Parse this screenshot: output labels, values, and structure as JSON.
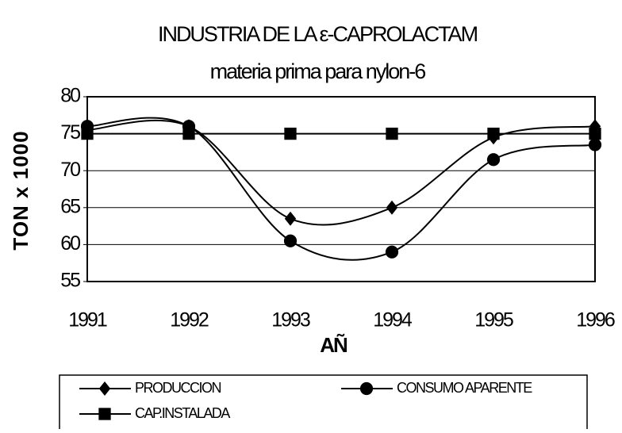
{
  "chart_data": {
    "type": "line",
    "title": "INDUSTRIA DE LA ε-CAPROLACTAM",
    "subtitle": "materia prima para nylon-6",
    "x_label": "AÑ",
    "y_label": "TON x 1000",
    "categories": [
      "1991",
      "1992",
      "1993",
      "1994",
      "1995",
      "1996"
    ],
    "series": [
      {
        "name": "PRODUCCION",
        "color": "#000000",
        "marker": "diamond",
        "values": [
          75.5,
          76,
          63.5,
          65,
          74.5,
          76
        ]
      },
      {
        "name": "CONSUMO APARENTE",
        "color": "#000000",
        "marker": "circle",
        "values": [
          76,
          76,
          60.5,
          59,
          71.5,
          73.5
        ]
      },
      {
        "name": "CAP.INSTALADA",
        "color": "#000000",
        "marker": "square",
        "values": [
          75,
          75,
          75,
          75,
          75,
          75
        ]
      }
    ],
    "ylim": [
      55,
      80
    ],
    "yticks": [
      55,
      60,
      65,
      70,
      75,
      80
    ],
    "grid": true,
    "smooth": true,
    "legend": "bottom"
  }
}
